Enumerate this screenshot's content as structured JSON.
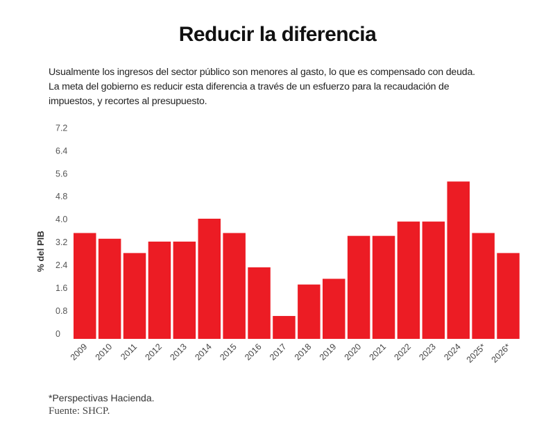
{
  "header": {
    "title": "Reducir la diferencia",
    "description_lines": [
      "Usualmente los ingresos del sector público son menores al gasto, lo que es compensado con deuda.",
      "La meta del gobierno es reducir esta diferencia a través de un esfuerzo para la recaudación de",
      "impuestos, y recortes al presupuesto."
    ]
  },
  "footer": {
    "note": "*Perspectivas Hacienda.",
    "source": "Fuente: SHCP."
  },
  "colors": {
    "bar": "#ec1c24"
  },
  "chart_data": {
    "type": "bar",
    "title": "Reducir la diferencia",
    "xlabel": "",
    "ylabel": "% del PIB",
    "ylim": [
      0,
      7.2
    ],
    "yticks": [
      "0",
      "0.8",
      "1.6",
      "2.4",
      "3.2",
      "4.0",
      "4.8",
      "5.6",
      "6.4",
      "7.2"
    ],
    "grid": false,
    "categories": [
      "2009",
      "2010",
      "2011",
      "2012",
      "2013",
      "2014",
      "2015",
      "2016",
      "2017",
      "2018",
      "2019",
      "2020",
      "2021",
      "2022",
      "2023",
      "2024",
      "2025*",
      "2026*"
    ],
    "values": [
      3.7,
      3.5,
      3.0,
      3.4,
      3.4,
      4.2,
      3.7,
      2.5,
      0.8,
      1.9,
      2.1,
      3.6,
      3.6,
      4.1,
      4.1,
      5.5,
      3.7,
      3.0
    ]
  }
}
